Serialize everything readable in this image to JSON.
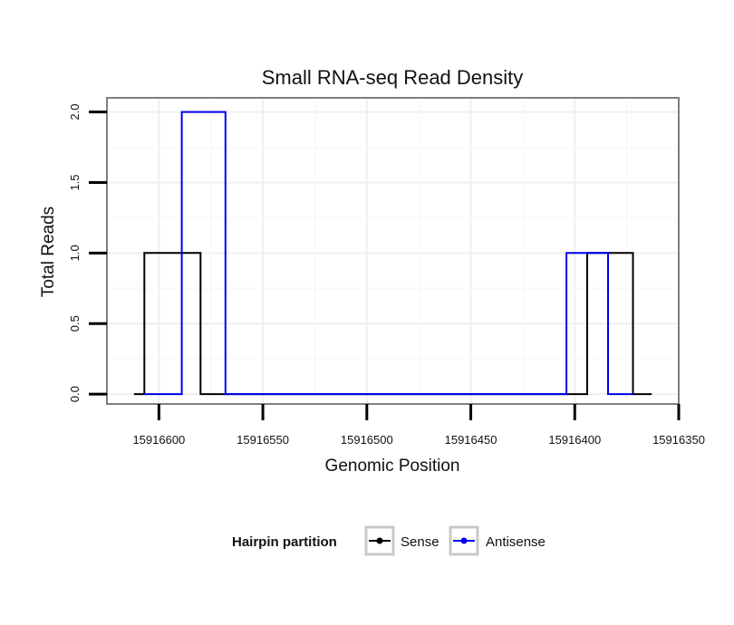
{
  "chart_data": {
    "type": "line",
    "title": "Small RNA-seq Read Density",
    "xlabel": "Genomic Position",
    "ylabel": "Total Reads",
    "x_reversed": true,
    "xlim": [
      15916625,
      15916350
    ],
    "ylim": [
      -0.07,
      2.1
    ],
    "x_ticks": [
      15916600,
      15916550,
      15916500,
      15916450,
      15916400,
      15916350
    ],
    "x_tick_labels": [
      "15916600",
      "15916550",
      "15916500",
      "15916450",
      "15916400",
      "15916350"
    ],
    "y_ticks": [
      0.0,
      0.5,
      1.0,
      1.5,
      2.0
    ],
    "y_tick_labels": [
      "0.0",
      "0.5",
      "1.0",
      "1.5",
      "2.0"
    ],
    "grid": true,
    "legend_position": "bottom",
    "legend_title": "Hairpin partition",
    "series": [
      {
        "name": "Sense",
        "color": "#000000",
        "x": [
          15916612,
          15916607,
          15916607,
          15916580,
          15916580,
          15916394,
          15916394,
          15916372,
          15916372,
          15916363
        ],
        "y": [
          0,
          0,
          1,
          1,
          0,
          0,
          1,
          1,
          0,
          0
        ]
      },
      {
        "name": "Antisense",
        "color": "#0000ee",
        "x": [
          15916607,
          15916589,
          15916589,
          15916568,
          15916568,
          15916404,
          15916404,
          15916384,
          15916384,
          15916372
        ],
        "y": [
          0,
          0,
          2,
          2,
          0,
          0,
          1,
          1,
          0,
          0
        ]
      }
    ]
  }
}
